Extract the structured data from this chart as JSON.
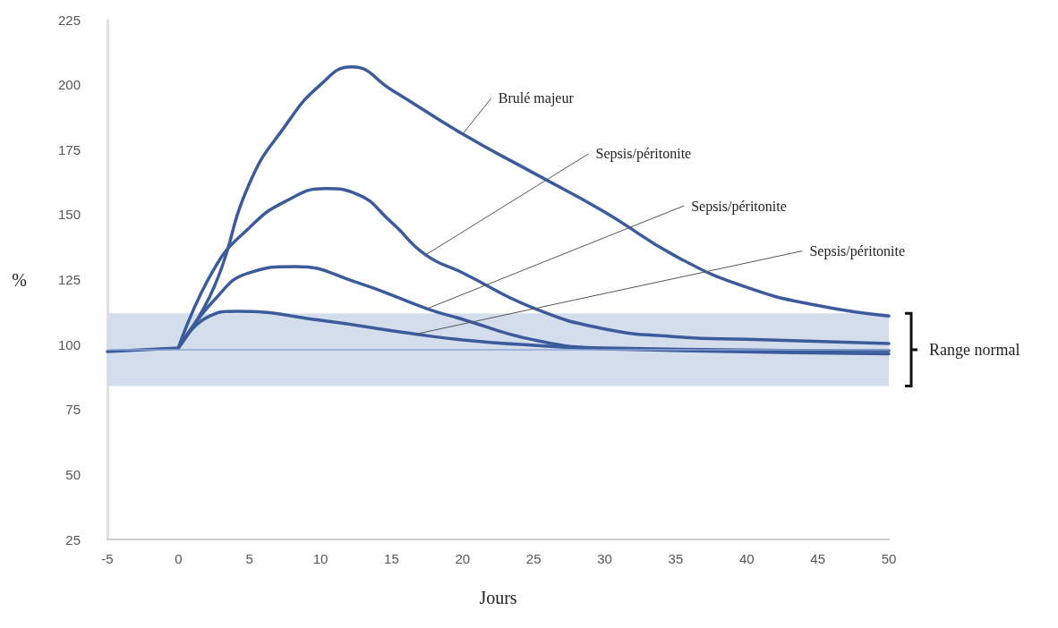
{
  "chart_data": {
    "type": "line",
    "xlabel": "Jours",
    "ylabel": "%",
    "xlim": [
      -5,
      50
    ],
    "xticks": [
      -5,
      0,
      5,
      10,
      15,
      20,
      25,
      30,
      35,
      40,
      45,
      50
    ],
    "ylim": [
      25,
      225
    ],
    "yticks": [
      25,
      50,
      75,
      100,
      125,
      150,
      175,
      200,
      225
    ],
    "grid": false,
    "marker": "none",
    "line_style": "solid",
    "series": [
      {
        "color": "#3b5b9c",
        "x": [
          -5,
          0
        ],
        "values": [
          97.3,
          98.7
        ]
      },
      {
        "color": "#3b5b9c",
        "x": [
          0,
          2.5,
          5,
          7.5,
          10,
          12.2,
          15,
          20,
          25,
          30,
          35,
          40,
          45,
          50
        ],
        "values": [
          98.7,
          122,
          162,
          184,
          200,
          206.8,
          198,
          181,
          166,
          151,
          134,
          122,
          115,
          111
        ]
      },
      {
        "color": "#3b5b9c",
        "x": [
          0,
          2.5,
          5,
          7.5,
          10.4,
          12.5,
          15,
          17.4,
          20,
          25,
          30,
          35,
          40,
          50
        ],
        "values": [
          98.7,
          129,
          145,
          155,
          160,
          158,
          147,
          134.5,
          127.6,
          114,
          106,
          103,
          102,
          100.4
        ]
      },
      {
        "color": "#3b5b9c",
        "x": [
          0,
          2.5,
          5,
          8.2,
          12.5,
          17.5,
          20,
          25,
          30,
          50
        ],
        "values": [
          98.7,
          117,
          127.6,
          130,
          124,
          113.8,
          109.7,
          101.8,
          98.7,
          97.6
        ]
      },
      {
        "color": "#3b5b9c",
        "x": [
          0,
          2,
          4.1,
          10,
          16.7,
          20,
          25,
          30,
          50
        ],
        "values": [
          98.7,
          110.4,
          112.8,
          109.3,
          104,
          101.8,
          99.7,
          98.3,
          96.4
        ]
      }
    ],
    "bands": [
      {
        "axis": "y",
        "from": 84,
        "to": 112,
        "label": "Range normal",
        "color": "#d4ddec"
      }
    ],
    "ref_lines": [
      {
        "axis": "y",
        "value": 98,
        "color": "#8fa6d4"
      }
    ],
    "annotations": [
      {
        "text": "Brulé majeur",
        "x": 20,
        "y": 181
      },
      {
        "text": "Sepsis/péritonite",
        "x": 17.4,
        "y": 134.5
      },
      {
        "text": "Sepsis/péritonite",
        "x": 17.5,
        "y": 113.8
      },
      {
        "text": "Sepsis/péritonite",
        "x": 16.7,
        "y": 104
      }
    ]
  }
}
